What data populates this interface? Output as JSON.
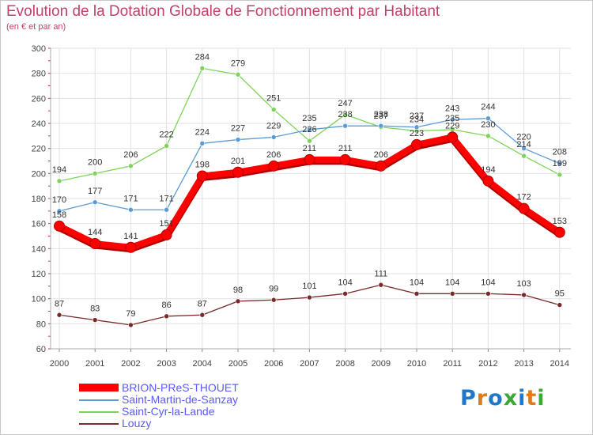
{
  "header": {
    "title": "Evolution de la Dotation Globale de Fonctionnement par Habitant",
    "subtitle": "(en € et par an)"
  },
  "logo": {
    "text": "Proxiti",
    "colors": [
      "#1f78c8",
      "#e07b1a",
      "#1f78c8",
      "#3aa835",
      "#1f78c8",
      "#e07b1a",
      "#3aa835"
    ]
  },
  "chart_data": {
    "type": "line",
    "categories": [
      "2000",
      "2001",
      "2002",
      "2003",
      "2004",
      "2005",
      "2006",
      "2007",
      "2008",
      "2009",
      "2010",
      "2011",
      "2012",
      "2013",
      "2014"
    ],
    "ylim": [
      60,
      300
    ],
    "yticks": [
      60,
      80,
      100,
      120,
      140,
      160,
      180,
      200,
      220,
      240,
      260,
      280,
      300
    ],
    "grid": true,
    "legend_position": "bottom-left",
    "series": [
      {
        "name": "BRION-PReS-THOUET",
        "color": "#ff0000",
        "values": [
          158,
          144,
          141,
          151,
          198,
          201,
          206,
          211,
          211,
          206,
          223,
          229,
          194,
          172,
          153
        ]
      },
      {
        "name": "Saint-Martin-de-Sanzay",
        "color": "#5b9bd5",
        "values": [
          170,
          177,
          171,
          171,
          224,
          227,
          229,
          235,
          238,
          238,
          237,
          243,
          244,
          220,
          208
        ]
      },
      {
        "name": "Saint-Cyr-la-Lande",
        "color": "#7fd35a",
        "values": [
          194,
          200,
          206,
          222,
          284,
          279,
          251,
          226,
          247,
          237,
          234,
          235,
          230,
          214,
          199
        ]
      },
      {
        "name": "Louzy",
        "color": "#7a2a2a",
        "values": [
          87,
          83,
          79,
          86,
          87,
          98,
          99,
          101,
          104,
          111,
          104,
          104,
          104,
          103,
          95
        ]
      }
    ]
  }
}
